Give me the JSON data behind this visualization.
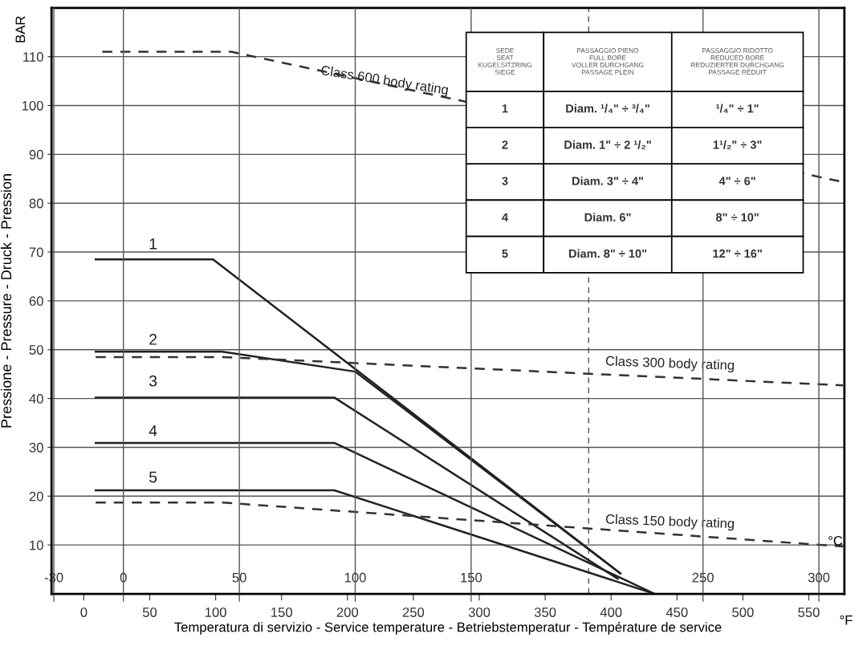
{
  "chart_data": {
    "type": "line",
    "xlabel": "Temperatura di servizio - Service temperature - Betriebstemperatur - Température de service",
    "ylabel": "Pressione - Pressure - Druck - Pression",
    "x2label": "°C",
    "xlim": [
      -24.5,
      577
    ],
    "xticks": [
      0,
      50,
      100,
      150,
      200,
      250,
      300,
      350,
      400,
      450,
      500,
      550
    ],
    "ylim": [
      0,
      120
    ],
    "yticks": [
      10,
      20,
      30,
      40,
      50,
      60,
      70,
      80,
      90,
      100,
      110
    ],
    "x2lim": [
      -31,
      311
    ],
    "x2ticks": [
      -30,
      0,
      50,
      100,
      150,
      250,
      300
    ],
    "grid": true,
    "line_style": "solid",
    "series": [
      {
        "color": "#222222",
        "x": [
          9,
          98,
          407
        ],
        "values": [
          68.5,
          68.5,
          4.2
        ]
      },
      {
        "color": "#222222",
        "x": [
          9,
          105,
          206,
          407
        ],
        "values": [
          49.6,
          49.6,
          45.5,
          4.2
        ]
      },
      {
        "color": "#222222",
        "x": [
          9,
          190,
          405
        ],
        "values": [
          40.2,
          40.2,
          3.1
        ]
      },
      {
        "color": "#222222",
        "x": [
          9,
          190,
          433
        ],
        "values": [
          30.9,
          30.9,
          0
        ]
      },
      {
        "color": "#222222",
        "x": [
          9,
          190,
          433
        ],
        "values": [
          21.2,
          21.2,
          0
        ]
      },
      {
        "color": "#333333",
        "line_style": "dashed",
        "x": [
          14,
          112,
          573
        ],
        "values": [
          111,
          111,
          84.5
        ]
      },
      {
        "color": "#333333",
        "line_style": "dashed",
        "x": [
          9,
          105,
          576
        ],
        "values": [
          48.5,
          48.5,
          42.7
        ]
      },
      {
        "color": "#333333",
        "line_style": "dashed",
        "x": [
          9,
          105,
          576
        ],
        "values": [
          18.7,
          18.7,
          9.7
        ]
      }
    ],
    "ref_lines": [
      {
        "axis": "x",
        "value": 383,
        "line_style": "dashed",
        "color": "#555555"
      }
    ],
    "annotations": [
      "Class 600 body rating",
      "Class 300 body rating",
      "Class 150 body rating",
      "1",
      "2",
      "3",
      "4",
      "5",
      "BAR",
      "°F",
      "SEDE\nSEAT\nKUGELSITZRING\nSIEGE",
      "PASSAGGIO PIENO\nFULL BORE\nVOLLER DURCHGANG\nPASSAGE PLEIN",
      "PASSAGGIO RIDOTTO\nREDUCED BORE\nREDUZIERTER DURCHGANG\nPASSAGE RÉDUIT",
      "1",
      "Diam. ¹/₄\" ÷ ³/₄\"",
      "¹/₄\" ÷ 1\"",
      "2",
      "Diam. 1\" ÷ 2 ¹/₂\"",
      "1¹/₂\" ÷ 3\"",
      "3",
      "Diam. 3\" ÷ 4\"",
      "4\" ÷ 6\"",
      "4",
      "Diam. 6\"",
      "8\" ÷ 10\"",
      "5",
      "Diam. 8\" ÷ 10\"",
      "12\" ÷ 16\""
    ]
  }
}
